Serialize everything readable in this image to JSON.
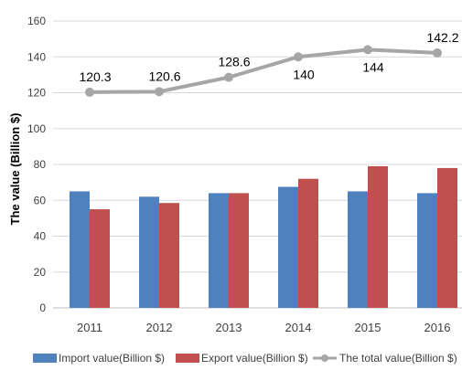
{
  "chart_data": {
    "type": "bar",
    "categories": [
      "2011",
      "2012",
      "2013",
      "2014",
      "2015",
      "2016"
    ],
    "ylabel": "The value (Billion $)",
    "ylim": [
      0,
      160
    ],
    "yticks": [
      0,
      20,
      40,
      60,
      80,
      100,
      120,
      140,
      160
    ],
    "grid": true,
    "legend_position": "bottom",
    "series": [
      {
        "name": "Import value(Billion $)",
        "type": "bar",
        "color": "#4f81bd",
        "values": [
          65,
          62,
          64,
          67.5,
          65,
          64
        ]
      },
      {
        "name": "Export value(Billion $)",
        "type": "bar",
        "color": "#c0504d",
        "values": [
          55,
          58.5,
          64,
          72,
          79,
          78
        ]
      },
      {
        "name": "The total value(Billion $)",
        "type": "line",
        "color": "#a6a6a6",
        "values": [
          120.3,
          120.6,
          128.6,
          140,
          144,
          142.2
        ],
        "data_labels": [
          "120.3",
          "120.6",
          "128.6",
          "140",
          "144",
          "142.2"
        ]
      }
    ]
  }
}
